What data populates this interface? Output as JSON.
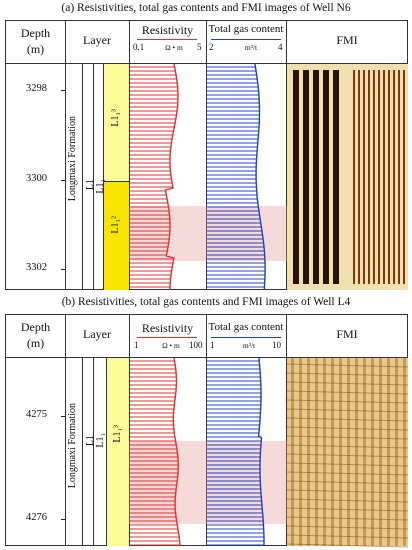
{
  "panel_a": {
    "caption": "(a) Resistivities, total gas contents and FMI images of Well N6",
    "depth_header": "Depth",
    "depth_unit": "(m)",
    "layer_header": "Layer",
    "resistivity_header": "Resistivity",
    "resistivity_min": "0.1",
    "resistivity_unit": "Ω • m",
    "resistivity_max": "5",
    "gas_header": "Total gas content",
    "gas_min": "2",
    "gas_unit": "m³/t",
    "gas_max": "4",
    "fmi_header": "FMI",
    "depths": [
      "3298",
      "3300",
      "3302"
    ],
    "formation": "Longmaxi Formation",
    "layer_l1": "L1",
    "layer_l1_1": "L1₁",
    "sub_upper": "L1₁³",
    "sub_lower": "L1₁²"
  },
  "panel_b": {
    "caption": "(b) Resistivities, total gas contents and FMI images of Well L4",
    "depth_header": "Depth",
    "depth_unit": "(m)",
    "layer_header": "Layer",
    "resistivity_header": "Resistivity",
    "resistivity_min": "1",
    "resistivity_unit": "Ω • m",
    "resistivity_max": "100",
    "gas_header": "Total gas content",
    "gas_min": "1",
    "gas_unit": "m³/t",
    "gas_max": "10",
    "fmi_header": "FMI",
    "depths": [
      "4275",
      "4276"
    ],
    "formation": "Longmaxi Formation",
    "layer_l1": "L1",
    "layer_l1_1": "L1₁",
    "sub_upper": "L1₁³"
  },
  "colors": {
    "resistivity": "#e03030",
    "gas": "#2040c0",
    "highlight": "#e89a9a",
    "layer_yellow": "#f7e500",
    "layer_yellow_light": "#fafa96"
  }
}
